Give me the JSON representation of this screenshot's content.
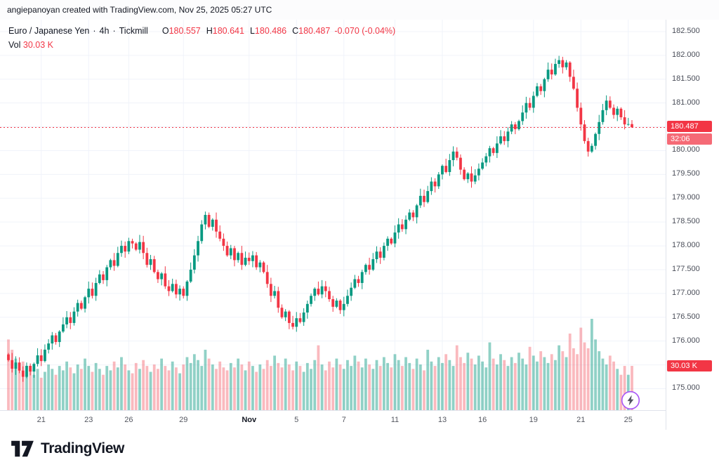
{
  "attribution": "angiepanoyan created with TradingView.com, Nov 25, 2025 05:27 UTC",
  "legend": {
    "symbol": "Euro / Japanese Yen",
    "separator": "·",
    "interval": "4h",
    "broker": "Tickmill",
    "o_label": "O",
    "o": "180.557",
    "h_label": "H",
    "h": "180.641",
    "l_label": "L",
    "l": "180.486",
    "c_label": "C",
    "c": "180.487",
    "change": "-0.070 (-0.04%)",
    "vol_label": "Vol",
    "vol": "30.03 K"
  },
  "price_scale": {
    "labels": [
      "182.500",
      "182.000",
      "181.500",
      "181.000",
      "180.500",
      "180.000",
      "179.500",
      "179.000",
      "178.500",
      "178.000",
      "177.500",
      "177.000",
      "176.500",
      "176.000",
      "175.500",
      "175.000"
    ],
    "last_price": "180.487",
    "countdown": "32:06",
    "volume_label": "30.03 K"
  },
  "time_scale": {
    "ticks": [
      {
        "label": "21",
        "index": 9
      },
      {
        "label": "23",
        "index": 22
      },
      {
        "label": "26",
        "index": 33
      },
      {
        "label": "29",
        "index": 48
      },
      {
        "label": "Nov",
        "index": 66,
        "major": true
      },
      {
        "label": "5",
        "index": 79
      },
      {
        "label": "7",
        "index": 92
      },
      {
        "label": "11",
        "index": 106
      },
      {
        "label": "13",
        "index": 119
      },
      {
        "label": "16",
        "index": 130
      },
      {
        "label": "19",
        "index": 144
      },
      {
        "label": "21",
        "index": 157
      },
      {
        "label": "25",
        "index": 170
      }
    ]
  },
  "footer": {
    "brand": "TradingView"
  },
  "colors": {
    "up": "#089981",
    "down": "#f23645",
    "vol_up": "rgba(8,153,129,0.45)",
    "vol_down": "rgba(242,54,69,0.35)",
    "grid": "#f0f3fa",
    "badge_bg": "#f23645",
    "countdown_bg": "#f56a76",
    "flash_ring": "#a855f7"
  },
  "chart_data": {
    "type": "candlestick+volume",
    "title": "Euro / Japanese Yen, 4h, Tickmill",
    "price_range": [
      174.55,
      182.75
    ],
    "volume_max": 62,
    "first_open": 175.72,
    "last": {
      "o": 180.557,
      "h": 180.641,
      "l": 180.486,
      "c": 180.487
    },
    "closes": [
      175.6,
      175.42,
      175.55,
      175.38,
      175.25,
      175.48,
      175.36,
      175.52,
      175.7,
      175.58,
      175.82,
      175.95,
      176.12,
      175.98,
      176.2,
      176.35,
      176.5,
      176.38,
      176.62,
      176.8,
      176.68,
      176.92,
      177.1,
      176.95,
      177.22,
      177.4,
      177.28,
      177.55,
      177.7,
      177.58,
      177.85,
      178.0,
      177.88,
      178.1,
      178.05,
      177.92,
      178.08,
      177.85,
      177.6,
      177.72,
      177.45,
      177.3,
      177.42,
      177.15,
      177.05,
      177.2,
      176.98,
      177.1,
      176.95,
      177.25,
      177.5,
      177.8,
      178.1,
      178.45,
      178.65,
      178.4,
      178.55,
      178.3,
      178.15,
      178.0,
      177.8,
      177.95,
      177.7,
      177.85,
      177.6,
      177.75,
      177.68,
      177.8,
      177.55,
      177.65,
      177.45,
      177.2,
      176.95,
      177.05,
      176.7,
      176.5,
      176.62,
      176.38,
      176.3,
      176.48,
      176.4,
      176.6,
      176.78,
      176.95,
      177.1,
      176.98,
      177.15,
      177.05,
      176.88,
      176.72,
      176.85,
      176.65,
      176.78,
      176.95,
      177.12,
      177.3,
      177.22,
      177.45,
      177.6,
      177.5,
      177.72,
      177.88,
      177.75,
      178.0,
      178.15,
      178.05,
      178.28,
      178.45,
      178.35,
      178.55,
      178.7,
      178.6,
      178.85,
      179.05,
      178.92,
      179.15,
      179.35,
      179.25,
      179.5,
      179.68,
      179.55,
      179.8,
      179.98,
      179.85,
      179.6,
      179.4,
      179.52,
      179.35,
      179.48,
      179.62,
      179.75,
      179.88,
      180.05,
      179.95,
      180.15,
      180.3,
      180.2,
      180.4,
      180.55,
      180.45,
      180.62,
      180.8,
      181.0,
      180.9,
      181.15,
      181.35,
      181.25,
      181.5,
      181.7,
      181.6,
      181.82,
      181.9,
      181.75,
      181.85,
      181.55,
      181.3,
      180.9,
      180.55,
      180.2,
      179.98,
      180.1,
      180.35,
      180.6,
      180.85,
      181.05,
      180.9,
      180.75,
      180.88,
      180.7,
      180.55,
      180.557,
      180.487
    ],
    "volumes": [
      48,
      41,
      35,
      29,
      33,
      26,
      30,
      24,
      28,
      22,
      26,
      31,
      28,
      24,
      30,
      27,
      33,
      29,
      25,
      31,
      28,
      35,
      30,
      26,
      32,
      28,
      24,
      30,
      27,
      33,
      29,
      36,
      31,
      27,
      25,
      32,
      28,
      34,
      30,
      26,
      31,
      28,
      35,
      30,
      27,
      33,
      29,
      25,
      31,
      36,
      32,
      38,
      34,
      30,
      41,
      35,
      31,
      28,
      33,
      29,
      27,
      32,
      29,
      35,
      31,
      27,
      33,
      30,
      26,
      31,
      28,
      34,
      30,
      37,
      32,
      29,
      35,
      31,
      27,
      33,
      30,
      26,
      32,
      28,
      34,
      44,
      31,
      27,
      33,
      29,
      35,
      31,
      28,
      34,
      30,
      37,
      33,
      29,
      35,
      31,
      28,
      34,
      30,
      36,
      32,
      29,
      38,
      34,
      30,
      36,
      32,
      28,
      35,
      31,
      27,
      41,
      33,
      30,
      36,
      32,
      38,
      34,
      30,
      44,
      36,
      32,
      39,
      35,
      31,
      37,
      33,
      29,
      46,
      35,
      31,
      38,
      34,
      30,
      36,
      32,
      39,
      35,
      31,
      43,
      37,
      33,
      40,
      36,
      32,
      38,
      34,
      44,
      40,
      36,
      52,
      42,
      38,
      56,
      46,
      42,
      62,
      48,
      40,
      35,
      31,
      37,
      33,
      28,
      24,
      30,
      24,
      30.03
    ]
  }
}
